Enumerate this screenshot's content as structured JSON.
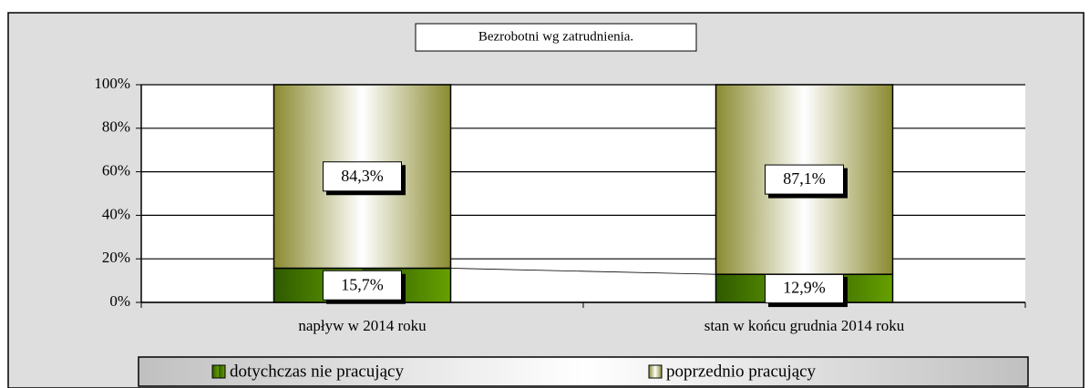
{
  "chart_data": {
    "type": "stacked_bar",
    "title": "Bezrobotni wg zatrudnienia.",
    "categories": [
      "napływ w 2014 roku",
      "stan w końcu grudnia 2014 roku"
    ],
    "series": [
      {
        "name": "dotychczas nie pracujący",
        "color": "#66a000",
        "values": [
          15.7,
          12.9
        ],
        "value_labels": [
          "15,7%",
          "12,9%"
        ]
      },
      {
        "name": "poprzednio pracujący",
        "color": "#8a8a30",
        "values": [
          84.3,
          87.1
        ],
        "value_labels": [
          "84,3%",
          "87,1%"
        ]
      }
    ],
    "ylim": [
      0,
      100
    ],
    "yticks": [
      {
        "value": 0,
        "label": "0%"
      },
      {
        "value": 20,
        "label": "20%"
      },
      {
        "value": 40,
        "label": "40%"
      },
      {
        "value": 60,
        "label": "60%"
      },
      {
        "value": 80,
        "label": "80%"
      },
      {
        "value": 100,
        "label": "100%"
      }
    ],
    "grid": true,
    "legend": "bottom"
  }
}
